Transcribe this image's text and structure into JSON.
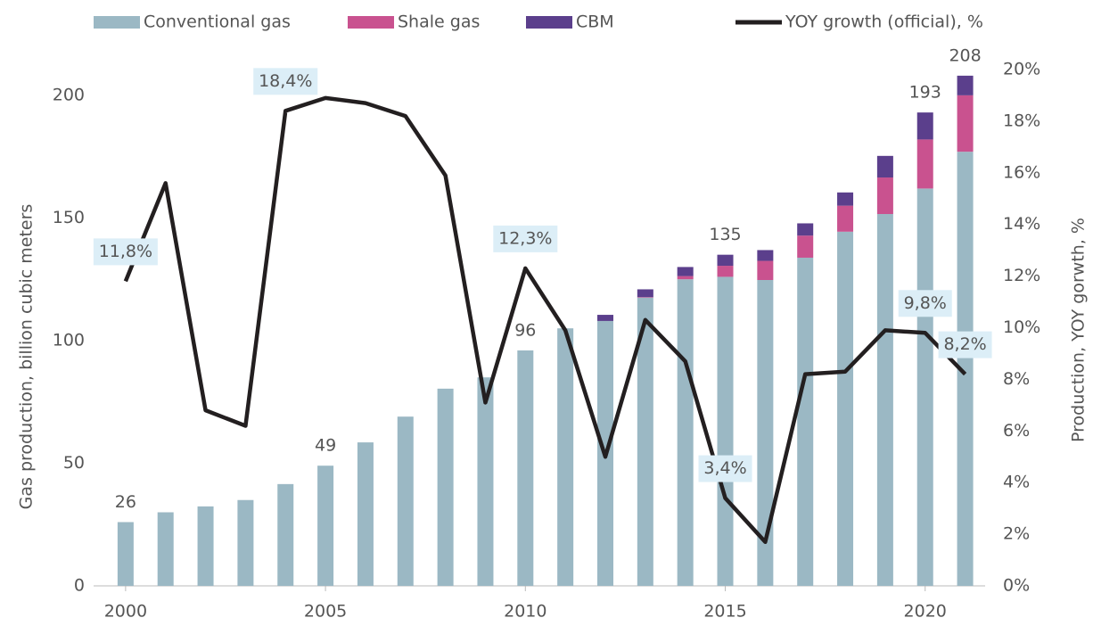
{
  "chart_data": {
    "type": "bar-line",
    "x": [
      2000,
      2001,
      2002,
      2003,
      2004,
      2005,
      2006,
      2007,
      2008,
      2009,
      2010,
      2011,
      2012,
      2013,
      2014,
      2015,
      2016,
      2017,
      2018,
      2019,
      2020,
      2021
    ],
    "xlim": [
      1999.2,
      2021.5
    ],
    "xticks": [
      2000,
      2005,
      2010,
      2015,
      2020
    ],
    "ylim": [
      0,
      210.5
    ],
    "yticks": [
      0,
      50,
      100,
      150,
      200
    ],
    "y2lim": [
      0,
      20
    ],
    "y2ticks": [
      {
        "value": 0,
        "label": "0%"
      },
      {
        "value": 2,
        "label": "2%"
      },
      {
        "value": 4,
        "label": "4%"
      },
      {
        "value": 6,
        "label": "6%"
      },
      {
        "value": 8,
        "label": "8%"
      },
      {
        "value": 10,
        "label": "10%"
      },
      {
        "value": 12,
        "label": "12%"
      },
      {
        "value": 14,
        "label": "14%"
      },
      {
        "value": 16,
        "label": "16%"
      },
      {
        "value": 18,
        "label": "18%"
      },
      {
        "value": 20,
        "label": "20%"
      }
    ],
    "ylabel": "Gas production, billion cubic meters",
    "y2label": "Production, YOY gorwth, %",
    "series": [
      {
        "name": "Conventional gas",
        "color": "#9bb8c4",
        "kind": "bar",
        "values": [
          26,
          30,
          32.4,
          35,
          41.5,
          49,
          58.5,
          69,
          80.4,
          85,
          96,
          105,
          108,
          117.5,
          125,
          126,
          124.7,
          133.8,
          144.4,
          151.6,
          162,
          177
        ]
      },
      {
        "name": "Shale gas",
        "color": "#c9528f",
        "kind": "bar",
        "values": [
          0,
          0,
          0,
          0,
          0,
          0,
          0,
          0,
          0,
          0,
          0,
          0,
          0,
          0.2,
          1.3,
          4.5,
          7.8,
          9,
          10.6,
          14.9,
          20,
          23
        ]
      },
      {
        "name": "CBM",
        "color": "#5b3f8c",
        "kind": "bar",
        "values": [
          0,
          0,
          0,
          0,
          0,
          0,
          0,
          0,
          0,
          0,
          0,
          0,
          2.5,
          3.2,
          3.7,
          4.5,
          4.4,
          5,
          5.4,
          8.8,
          11,
          8
        ]
      },
      {
        "name": "YOY growth (official), %",
        "color": "#231f20",
        "kind": "line",
        "axis": "y2",
        "values": [
          11.8,
          15.6,
          6.8,
          6.2,
          18.4,
          18.9,
          18.7,
          18.2,
          15.9,
          7.1,
          12.3,
          9.9,
          5.0,
          10.3,
          8.7,
          3.4,
          1.7,
          8.2,
          8.3,
          9.9,
          9.8,
          8.2
        ],
        "value_labels": [
          "11,8%",
          null,
          null,
          null,
          "18,4%",
          null,
          null,
          null,
          null,
          null,
          "12,3%",
          null,
          null,
          null,
          null,
          "3,4%",
          null,
          null,
          null,
          null,
          "9,8%",
          "8,2%"
        ]
      }
    ],
    "total_labels": [
      "26",
      null,
      null,
      null,
      null,
      "49",
      null,
      null,
      null,
      null,
      "96",
      null,
      null,
      null,
      null,
      "135",
      null,
      null,
      null,
      null,
      "193",
      "208"
    ]
  }
}
